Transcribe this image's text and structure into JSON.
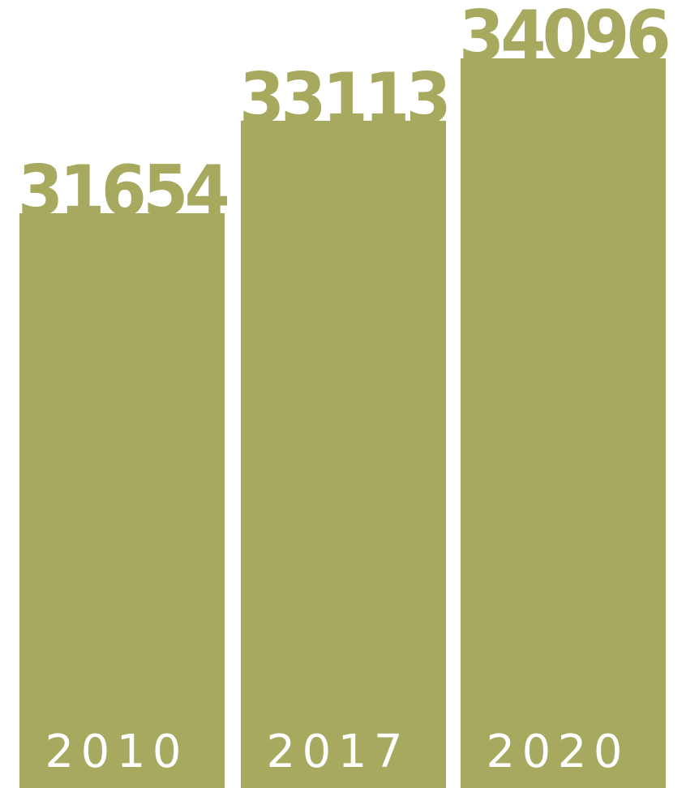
{
  "chart_data": {
    "type": "bar",
    "categories": [
      "2010",
      "2017",
      "2020"
    ],
    "values": [
      31654,
      33113,
      34096
    ],
    "title": "",
    "xlabel": "",
    "ylabel": "",
    "legend": "none",
    "grid": false,
    "axes_visible": false,
    "value_labels": "above bars",
    "category_labels": "inside bar bottom",
    "colors": {
      "bar": "#a7a95f",
      "value_label": "#a7a95f",
      "category_label": "#ffffff",
      "background": "#ffffff"
    }
  }
}
